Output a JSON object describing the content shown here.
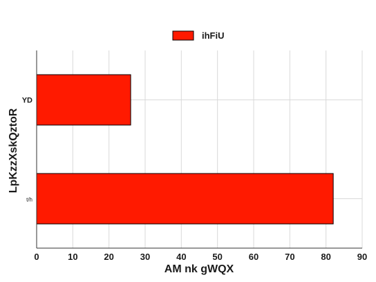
{
  "chart_data": {
    "type": "bar",
    "orientation": "horizontal",
    "categories": [
      "YD",
      "t/h"
    ],
    "series": [
      {
        "name": "ihFiU",
        "values": [
          26,
          82
        ],
        "color": "#ff1a00"
      }
    ],
    "xlabel": "AM nk gWQX",
    "ylabel": "LpKzzXskQztoR",
    "xlim": [
      0,
      90
    ],
    "xticks": [
      0,
      10,
      20,
      30,
      40,
      50,
      60,
      70,
      80,
      90
    ],
    "grid": true,
    "legend_position": "top-center"
  }
}
